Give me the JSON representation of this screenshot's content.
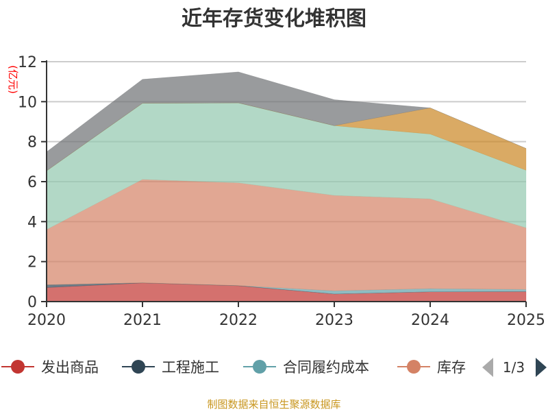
{
  "chart_data": {
    "type": "area",
    "stacked": true,
    "title": "近年存货变化堆积图",
    "ylabel": "(亿元)",
    "xlabel": "",
    "categories": [
      "2020",
      "2021",
      "2022",
      "2023",
      "2024",
      "2025"
    ],
    "ylim": [
      0,
      12
    ],
    "yticks": [
      "0",
      "2",
      "4",
      "6",
      "8",
      "10",
      "12"
    ],
    "grid": true,
    "legend_position": "bottom",
    "series": [
      {
        "name": "发出商品",
        "color": "#c23531",
        "values": [
          0.7,
          0.93,
          0.79,
          0.38,
          0.49,
          0.5
        ]
      },
      {
        "name": "工程施工",
        "color": "#2f4554",
        "values": [
          0.14,
          0.01,
          0.01,
          0.0,
          0.0,
          0.0
        ]
      },
      {
        "name": "合同履约成本",
        "color": "#61a0a8",
        "values": [
          0.0,
          0.0,
          0.0,
          0.16,
          0.16,
          0.11
        ]
      },
      {
        "name": "库存",
        "color": "#d48265",
        "values": [
          2.76,
          5.17,
          5.14,
          4.77,
          4.49,
          3.08
        ]
      },
      {
        "name": "",
        "color": "#91c7ae",
        "values": [
          2.94,
          3.81,
          4.0,
          3.49,
          3.24,
          2.88
        ]
      },
      {
        "name": "",
        "color": "#ca8622",
        "values": [
          0.0,
          0.0,
          0.0,
          0.0,
          1.31,
          1.09
        ]
      },
      {
        "name": "",
        "color": "#6e7074",
        "values": [
          0.95,
          1.2,
          1.55,
          1.3,
          0.0,
          0.0
        ]
      }
    ]
  },
  "legend": {
    "page": "1/3"
  },
  "footer": {
    "source": "制图数据来自恒生聚源数据库"
  }
}
